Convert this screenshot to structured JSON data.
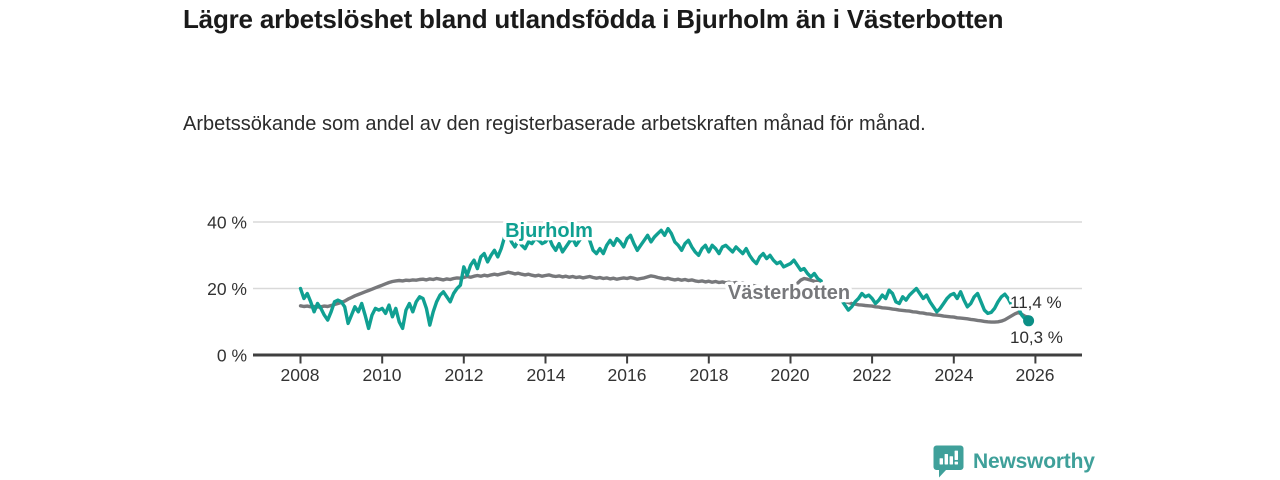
{
  "chart_data": {
    "type": "line",
    "title": "Lägre arbetslöshet bland utlandsfödda i Bjurholm än i Västerbotten",
    "subtitle": "Arbetssökande som andel av den registerbaserade arbetskraften månad för månad.",
    "unit": "%",
    "grid": true,
    "legend": "inline-labels",
    "x_range": [
      2008.0,
      2025.92
    ],
    "ylim": [
      0,
      44
    ],
    "y_ticks": [
      {
        "label": "40 %",
        "value": 40
      },
      {
        "label": "20 %",
        "value": 20
      },
      {
        "label": "0 %",
        "value": 0
      }
    ],
    "x_ticks": [
      {
        "label": "2008",
        "year": 2008
      },
      {
        "label": "2010",
        "year": 2010
      },
      {
        "label": "2012",
        "year": 2012
      },
      {
        "label": "2014",
        "year": 2014
      },
      {
        "label": "2016",
        "year": 2016
      },
      {
        "label": "2018",
        "year": 2018
      },
      {
        "label": "2020",
        "year": 2020
      },
      {
        "label": "2022",
        "year": 2022
      },
      {
        "label": "2024",
        "year": 2024
      },
      {
        "label": "2026",
        "year": 2026
      }
    ],
    "data_gap_note": "series interrupted between late 2020 and spring 2021",
    "series": [
      {
        "name": "Bjurholm",
        "color": "#10A092",
        "end_value": 10.3,
        "end_label": "10,3 %",
        "segments": [
          {
            "start": [
              2008,
              1
            ],
            "values": [
              20,
              17,
              18.5,
              16,
              13,
              15.5,
              14,
              12,
              10.5,
              13,
              16,
              16.5,
              16,
              14.5,
              9.5,
              12,
              14.5,
              13,
              15.5,
              12,
              8,
              12,
              14,
              13.5,
              14,
              12.5,
              15,
              11.5,
              14,
              10,
              8,
              13.5,
              15.5,
              13,
              16,
              17.5,
              17,
              14,
              9,
              13,
              16,
              18,
              19,
              17.5,
              16,
              18.5,
              20,
              21,
              26.5,
              24,
              27,
              28.5,
              26,
              29.5,
              30.5,
              28,
              30,
              31.5,
              29.5,
              32,
              35.5,
              36.5,
              34,
              32.5,
              34.5,
              33,
              32,
              34,
              33.5,
              35,
              34.5,
              33.5,
              34,
              35.5,
              33,
              31.5,
              33.5,
              31,
              32.5,
              34,
              35,
              33,
              34.5,
              36,
              36.5,
              34.5,
              31.5,
              30.5,
              32,
              30.5,
              33,
              34.5,
              33,
              35,
              34,
              32.5,
              35,
              36,
              33.5,
              31.5,
              33,
              34.5,
              36,
              34,
              35.5,
              36.5,
              37.5,
              36,
              38,
              36.5,
              34,
              33,
              31.5,
              33.5,
              34.5,
              32.5,
              31,
              30,
              32,
              33,
              31,
              33,
              32,
              30.5,
              32.5,
              33,
              32,
              31,
              32.5,
              31.5,
              30.5,
              32,
              30,
              28.5,
              27.5,
              29.5,
              30.5,
              29,
              30,
              28.5,
              27.5,
              28,
              26.5,
              27,
              27.5,
              28.5,
              27,
              25.5,
              26,
              24.5,
              23.5,
              24.5,
              23,
              22.3
            ]
          },
          {
            "start": [
              2021,
              4
            ],
            "values": [
              16.5,
              15,
              13.5,
              14.5,
              16,
              17,
              18.5,
              17.5,
              18,
              17,
              15.5,
              16.5,
              18,
              17,
              19.5,
              18.5,
              16,
              15.5,
              17.5,
              16.5,
              18,
              19,
              20,
              18.5,
              17,
              18,
              16,
              14.5,
              13,
              14,
              15.5,
              17,
              18,
              18.5,
              17,
              19,
              16.5,
              14.5,
              15.5,
              17.5,
              18.5,
              16,
              13.5,
              12.5,
              12.8,
              14,
              16,
              17.5,
              18.3,
              17,
              15,
              16.5,
              14,
              12,
              10.8,
              10.3
            ]
          }
        ]
      },
      {
        "name": "Västerbotten",
        "color": "#77787B",
        "end_value": 11.4,
        "end_label": "11,4 %",
        "segments": [
          {
            "start": [
              2008,
              1
            ],
            "values": [
              14.8,
              14.6,
              14.7,
              14.5,
              14.6,
              14.4,
              14.5,
              14.7,
              14.6,
              14.9,
              15.2,
              15.5,
              15.8,
              16.2,
              16.8,
              17.3,
              17.8,
              18.2,
              18.6,
              19,
              19.4,
              19.8,
              20.2,
              20.6,
              21,
              21.4,
              21.8,
              22.1,
              22.3,
              22.4,
              22.3,
              22.5,
              22.4,
              22.6,
              22.5,
              22.7,
              22.8,
              22.6,
              22.9,
              22.7,
              23,
              22.8,
              22.6,
              22.9,
              22.7,
              23,
              23.2,
              23.1,
              23.3,
              23.6,
              23.4,
              23.7,
              23.9,
              23.7,
              24,
              23.8,
              24.1,
              24.3,
              24.1,
              24.4,
              24.6,
              24.9,
              24.7,
              24.4,
              24.6,
              24.3,
              24.1,
              24.3,
              24,
              23.8,
              24,
              23.7,
              23.9,
              24.1,
              23.8,
              23.6,
              23.8,
              23.5,
              23.7,
              23.4,
              23.6,
              23.3,
              23.5,
              23.2,
              23.4,
              23.6,
              23.3,
              23.1,
              23.3,
              23,
              23.2,
              22.9,
              23.1,
              22.8,
              23,
              23.2,
              23,
              23.3,
              23.1,
              22.8,
              23,
              23.2,
              23.5,
              23.8,
              23.6,
              23.3,
              23.1,
              22.9,
              23.1,
              22.8,
              22.6,
              22.8,
              22.5,
              22.7,
              22.4,
              22.6,
              22.3,
              22.1,
              22.3,
              22,
              22.2,
              21.9,
              22.1,
              21.8,
              22,
              21.7,
              21.9,
              21.6,
              21.8,
              21.5,
              21.7,
              21.4,
              21.1,
              20.9,
              20.7,
              20.5,
              20.4,
              20.2,
              20.1,
              20,
              19.9,
              19.8,
              19.9,
              20,
              20.5,
              20.8,
              21.5,
              22.5,
              23,
              22.8,
              22.5,
              22.2,
              22,
              21.8
            ]
          },
          {
            "start": [
              2021,
              4
            ],
            "values": [
              16.3,
              16,
              15.8,
              15.5,
              15.3,
              15.1,
              15,
              14.9,
              14.8,
              14.7,
              14.5,
              14.4,
              14.2,
              14.1,
              14,
              13.8,
              13.7,
              13.5,
              13.4,
              13.3,
              13.2,
              13,
              12.9,
              12.7,
              12.6,
              12.4,
              12.3,
              12.1,
              12,
              11.9,
              11.7,
              11.6,
              11.5,
              11.4,
              11.2,
              11.1,
              11,
              10.9,
              10.7,
              10.6,
              10.4,
              10.3,
              10.1,
              10,
              9.9,
              9.9,
              10,
              10.2,
              10.6,
              11.2,
              11.8,
              12.4,
              12.8,
              12.2,
              11.6,
              11.4
            ]
          }
        ]
      }
    ]
  },
  "footer": {
    "brand": "Newsworthy"
  }
}
